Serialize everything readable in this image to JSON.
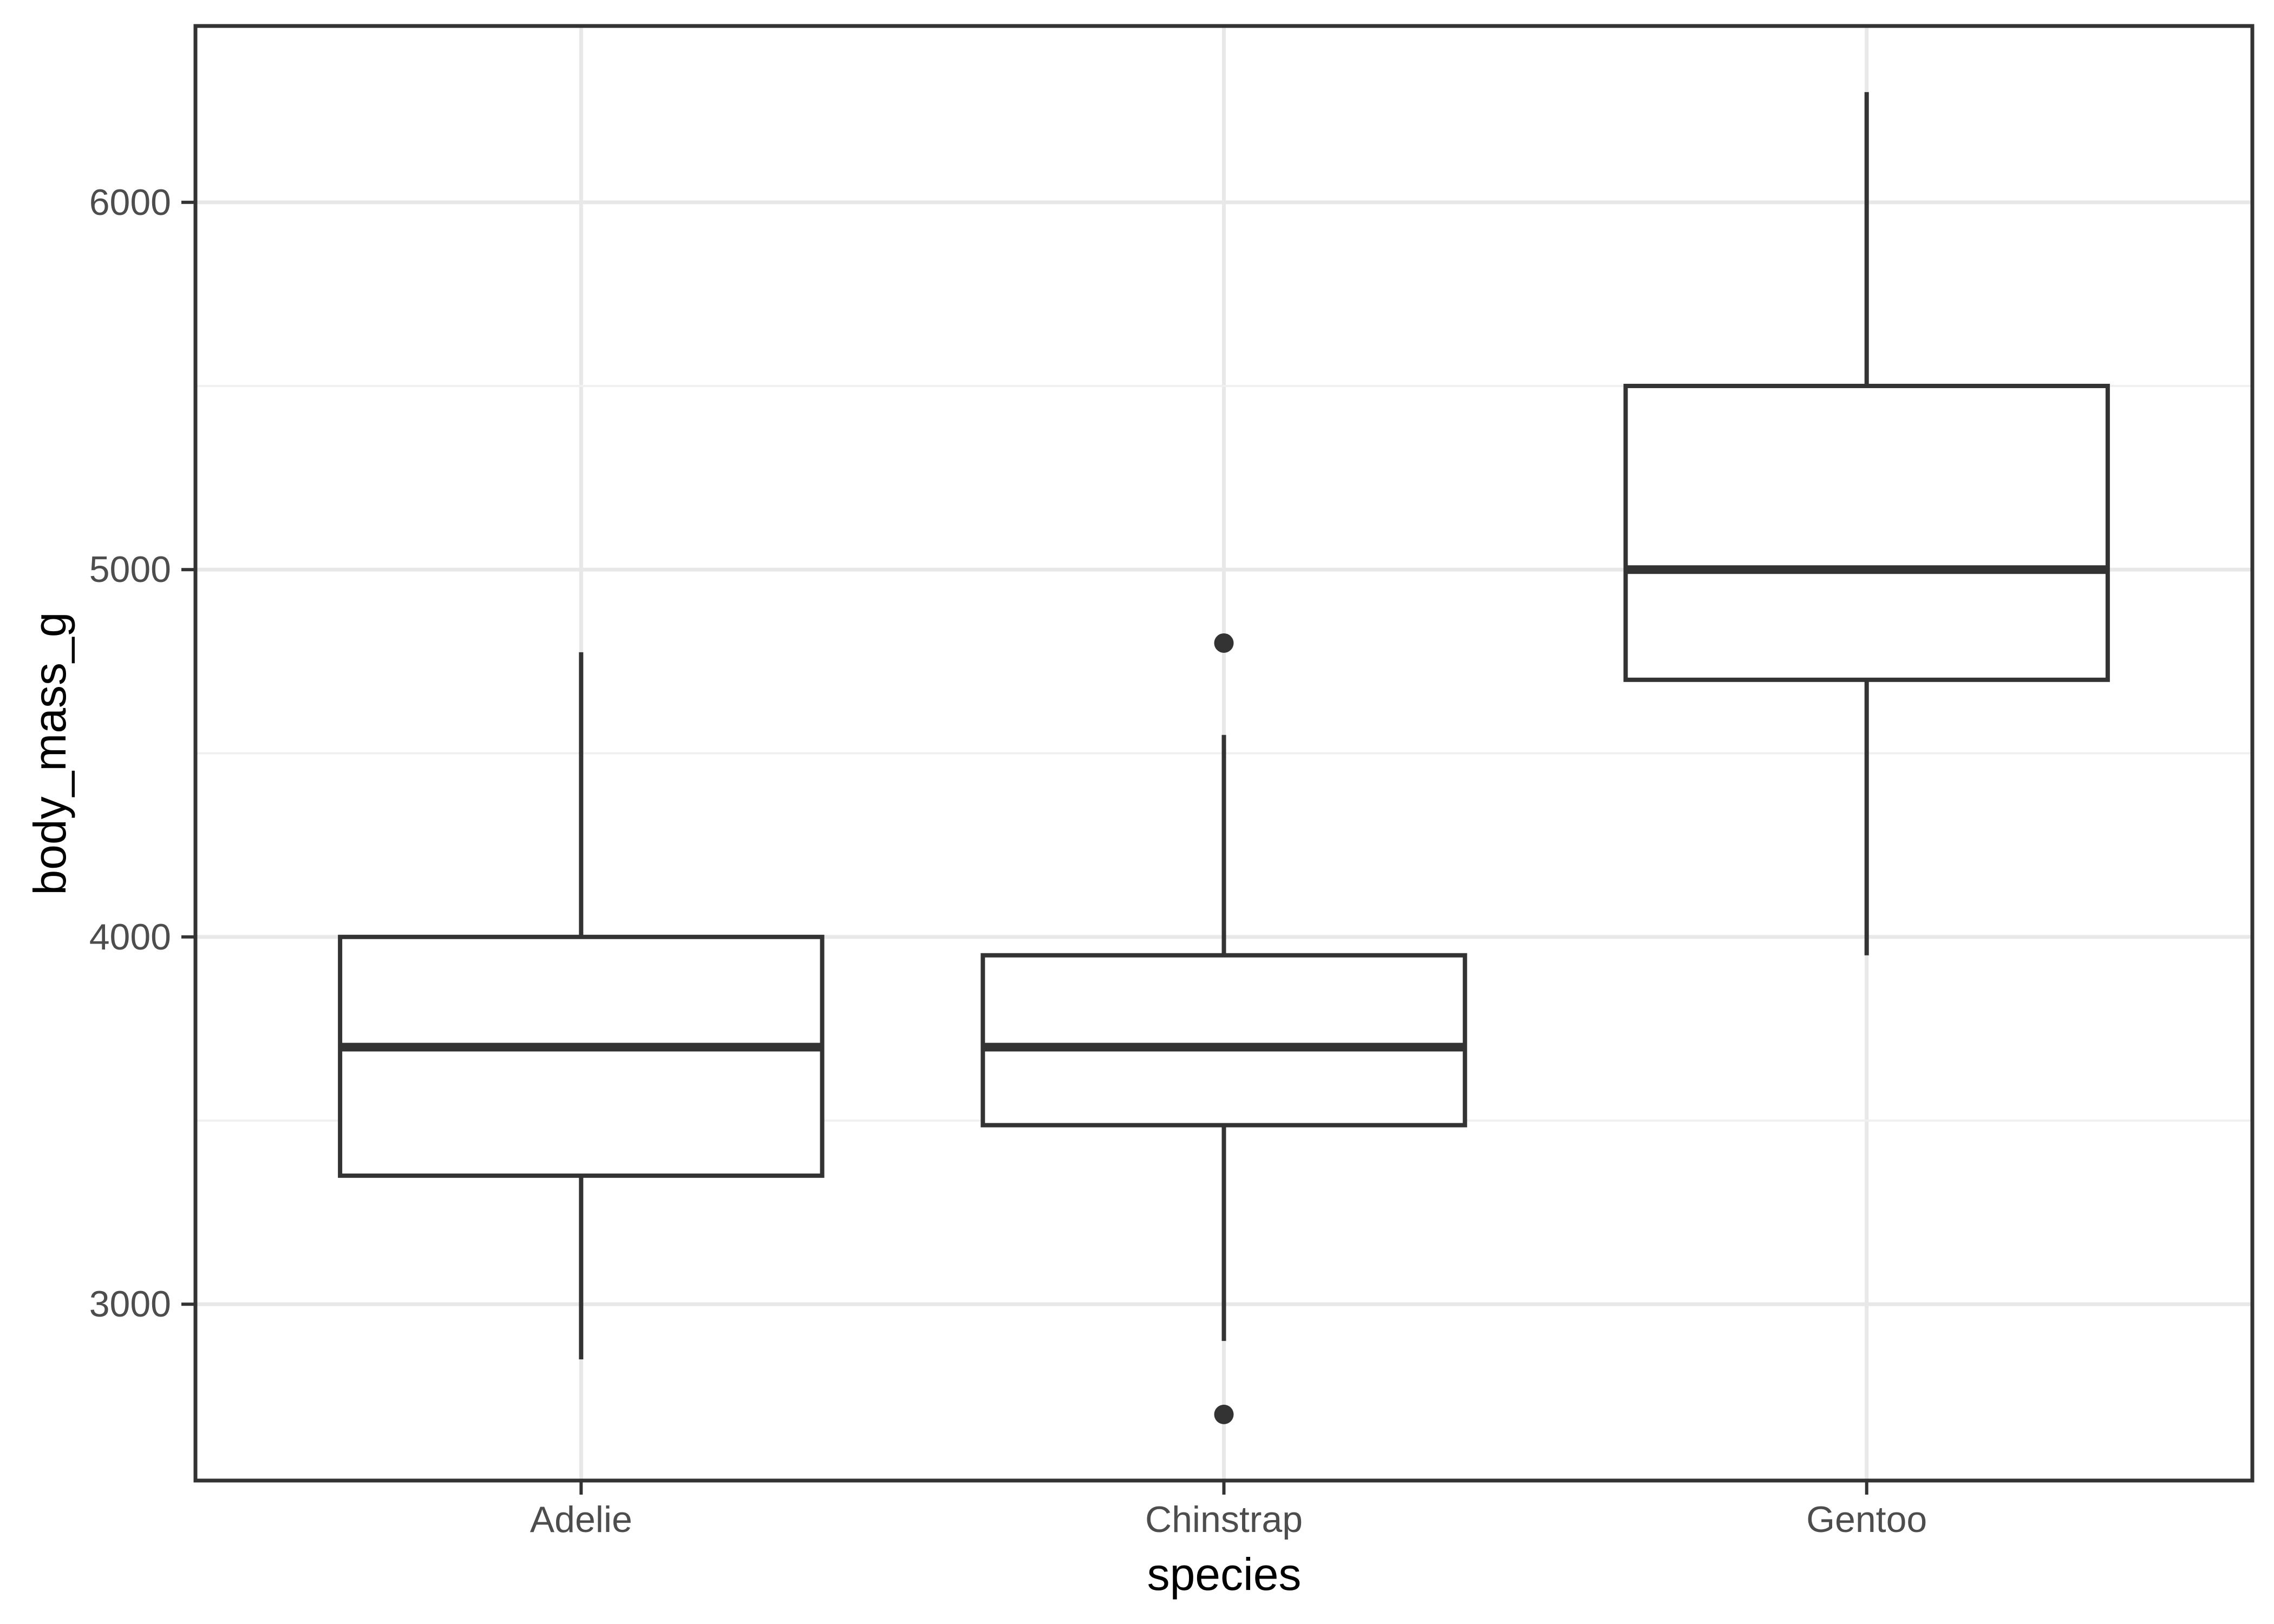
{
  "chart_data": {
    "type": "boxplot",
    "title": "",
    "xlabel": "species",
    "ylabel": "body_mass_g",
    "categories": [
      "Adelie",
      "Chinstrap",
      "Gentoo"
    ],
    "series": [
      {
        "category": "Adelie",
        "whisker_low": 2850,
        "q1": 3350,
        "median": 3700,
        "q3": 4000,
        "whisker_high": 4775,
        "outliers": []
      },
      {
        "category": "Chinstrap",
        "whisker_low": 2900,
        "q1": 3487.5,
        "median": 3700,
        "q3": 3950,
        "whisker_high": 4550,
        "outliers": [
          2700,
          4800
        ]
      },
      {
        "category": "Gentoo",
        "whisker_low": 3950,
        "q1": 4700,
        "median": 5000,
        "q3": 5500,
        "whisker_high": 6300,
        "outliers": []
      }
    ],
    "y_axis": {
      "tick_labels": [
        "3000",
        "4000",
        "5000",
        "6000"
      ],
      "ticks": [
        3000,
        4000,
        5000,
        6000
      ],
      "minor_ticks": [
        3500,
        4500,
        5500
      ],
      "range": [
        2520,
        6480
      ],
      "grid": true
    },
    "x_axis": {
      "grid": true
    },
    "legend": "none",
    "style": {
      "background": "#ffffff",
      "panel_background": "#ffffff",
      "panel_border_color": "#333333",
      "box_stroke_color": "#333333",
      "box_fill_color": "#ffffff",
      "outlier_color": "#333333",
      "grid_major_color": "#e8e8e8",
      "grid_minor_color": "#f0f0f0",
      "tick_mark_color": "#333333",
      "tick_label_color": "#4d4d4d",
      "axis_title_color": "#000000"
    }
  }
}
